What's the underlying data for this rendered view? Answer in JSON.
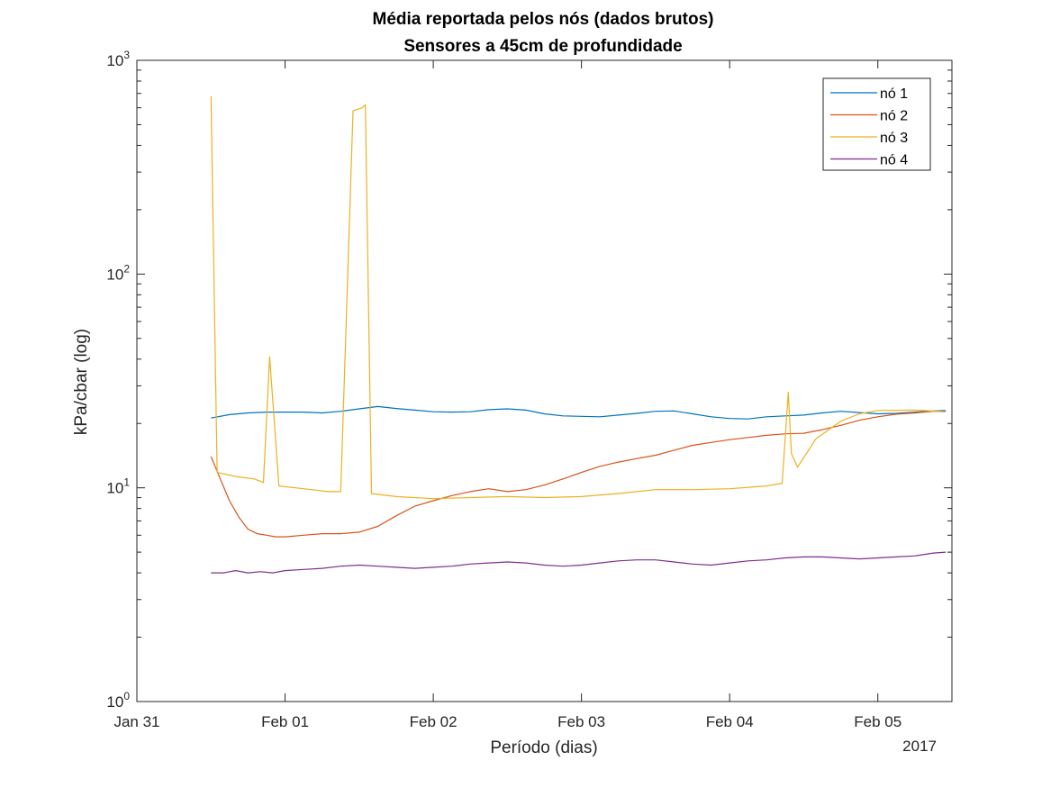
{
  "chart_data": {
    "type": "line",
    "title": "Média reportada pelos nós (dados brutos)",
    "subtitle": "Sensores a 45cm de profundidade",
    "xlabel": "Período (dias)",
    "ylabel": "kPa/cbar (log)",
    "x_year_label": "2017",
    "y_scale": "log",
    "ylim": [
      1,
      1000
    ],
    "xlim": [
      "2017-01-31T00:00",
      "2017-02-05T12:00"
    ],
    "x_ticks": [
      {
        "t": "2017-01-31T00:00",
        "label": "Jan 31"
      },
      {
        "t": "2017-02-01T00:00",
        "label": "Feb 01"
      },
      {
        "t": "2017-02-02T00:00",
        "label": "Feb 02"
      },
      {
        "t": "2017-02-03T00:00",
        "label": "Feb 03"
      },
      {
        "t": "2017-02-04T00:00",
        "label": "Feb 04"
      },
      {
        "t": "2017-02-05T00:00",
        "label": "Feb 05"
      }
    ],
    "y_ticks": [
      {
        "v": 1,
        "base": "10",
        "exp": "0"
      },
      {
        "v": 10,
        "base": "10",
        "exp": "1"
      },
      {
        "v": 100,
        "base": "10",
        "exp": "2"
      },
      {
        "v": 1000,
        "base": "10",
        "exp": "3"
      }
    ],
    "grid": false,
    "legend_position": "top-right",
    "series": [
      {
        "name": "nó 1",
        "color": "#0072BD",
        "points": [
          [
            "2017-01-31T12:00",
            21.2
          ],
          [
            "2017-01-31T15:00",
            22.0
          ],
          [
            "2017-01-31T18:00",
            22.4
          ],
          [
            "2017-01-31T21:00",
            22.6
          ],
          [
            "2017-02-01T00:00",
            22.6
          ],
          [
            "2017-02-01T03:00",
            22.6
          ],
          [
            "2017-02-01T06:00",
            22.4
          ],
          [
            "2017-02-01T09:00",
            22.8
          ],
          [
            "2017-02-01T12:00",
            23.4
          ],
          [
            "2017-02-01T15:00",
            24.0
          ],
          [
            "2017-02-01T18:00",
            23.5
          ],
          [
            "2017-02-01T21:00",
            23.1
          ],
          [
            "2017-02-02T00:00",
            22.7
          ],
          [
            "2017-02-02T03:00",
            22.6
          ],
          [
            "2017-02-02T06:00",
            22.7
          ],
          [
            "2017-02-02T09:00",
            23.2
          ],
          [
            "2017-02-02T12:00",
            23.4
          ],
          [
            "2017-02-02T15:00",
            23.1
          ],
          [
            "2017-02-02T18:00",
            22.2
          ],
          [
            "2017-02-02T21:00",
            21.7
          ],
          [
            "2017-02-03T00:00",
            21.6
          ],
          [
            "2017-02-03T03:00",
            21.5
          ],
          [
            "2017-02-03T06:00",
            21.9
          ],
          [
            "2017-02-03T09:00",
            22.3
          ],
          [
            "2017-02-03T12:00",
            22.8
          ],
          [
            "2017-02-03T15:00",
            22.9
          ],
          [
            "2017-02-03T18:00",
            22.2
          ],
          [
            "2017-02-03T21:00",
            21.5
          ],
          [
            "2017-02-04T00:00",
            21.1
          ],
          [
            "2017-02-04T03:00",
            21.0
          ],
          [
            "2017-02-04T06:00",
            21.5
          ],
          [
            "2017-02-04T09:00",
            21.7
          ],
          [
            "2017-02-04T12:00",
            21.9
          ],
          [
            "2017-02-04T15:00",
            22.4
          ],
          [
            "2017-02-04T18:00",
            22.8
          ],
          [
            "2017-02-04T21:00",
            22.5
          ],
          [
            "2017-02-05T00:00",
            22.2
          ],
          [
            "2017-02-05T03:00",
            22.3
          ],
          [
            "2017-02-05T06:00",
            22.6
          ],
          [
            "2017-02-05T09:00",
            22.9
          ],
          [
            "2017-02-05T11:00",
            23.0
          ]
        ]
      },
      {
        "name": "nó 2",
        "color": "#D95319",
        "points": [
          [
            "2017-01-31T12:00",
            14.0
          ],
          [
            "2017-01-31T13:30",
            11.0
          ],
          [
            "2017-01-31T15:00",
            8.7
          ],
          [
            "2017-01-31T16:30",
            7.3
          ],
          [
            "2017-01-31T18:00",
            6.4
          ],
          [
            "2017-01-31T19:30",
            6.1
          ],
          [
            "2017-01-31T21:00",
            6.0
          ],
          [
            "2017-01-31T22:30",
            5.9
          ],
          [
            "2017-02-01T00:00",
            5.9
          ],
          [
            "2017-02-01T03:00",
            6.0
          ],
          [
            "2017-02-01T06:00",
            6.1
          ],
          [
            "2017-02-01T09:00",
            6.1
          ],
          [
            "2017-02-01T12:00",
            6.2
          ],
          [
            "2017-02-01T15:00",
            6.6
          ],
          [
            "2017-02-01T18:00",
            7.4
          ],
          [
            "2017-02-01T21:00",
            8.2
          ],
          [
            "2017-02-02T00:00",
            8.7
          ],
          [
            "2017-02-02T03:00",
            9.2
          ],
          [
            "2017-02-02T06:00",
            9.6
          ],
          [
            "2017-02-02T09:00",
            9.9
          ],
          [
            "2017-02-02T12:00",
            9.6
          ],
          [
            "2017-02-02T15:00",
            9.8
          ],
          [
            "2017-02-02T18:00",
            10.3
          ],
          [
            "2017-02-02T21:00",
            11.0
          ],
          [
            "2017-02-03T00:00",
            11.8
          ],
          [
            "2017-02-03T03:00",
            12.6
          ],
          [
            "2017-02-03T06:00",
            13.2
          ],
          [
            "2017-02-03T09:00",
            13.7
          ],
          [
            "2017-02-03T12:00",
            14.2
          ],
          [
            "2017-02-03T15:00",
            15.0
          ],
          [
            "2017-02-03T18:00",
            15.8
          ],
          [
            "2017-02-03T21:00",
            16.3
          ],
          [
            "2017-02-04T00:00",
            16.8
          ],
          [
            "2017-02-04T03:00",
            17.2
          ],
          [
            "2017-02-04T06:00",
            17.6
          ],
          [
            "2017-02-04T09:00",
            17.9
          ],
          [
            "2017-02-04T12:00",
            18.0
          ],
          [
            "2017-02-04T15:00",
            18.7
          ],
          [
            "2017-02-04T18:00",
            19.6
          ],
          [
            "2017-02-04T21:00",
            20.7
          ],
          [
            "2017-02-05T00:00",
            21.5
          ],
          [
            "2017-02-05T03:00",
            22.1
          ],
          [
            "2017-02-05T06:00",
            22.4
          ],
          [
            "2017-02-05T09:00",
            22.8
          ],
          [
            "2017-02-05T11:00",
            22.7
          ]
        ]
      },
      {
        "name": "nó 3",
        "color": "#EDB120",
        "points": [
          [
            "2017-01-31T12:00",
            680
          ],
          [
            "2017-01-31T13:00",
            11.8
          ],
          [
            "2017-01-31T16:00",
            11.3
          ],
          [
            "2017-01-31T19:00",
            11.0
          ],
          [
            "2017-01-31T20:30",
            10.6
          ],
          [
            "2017-01-31T21:30",
            41
          ],
          [
            "2017-01-31T23:00",
            10.2
          ],
          [
            "2017-02-01T03:00",
            9.9
          ],
          [
            "2017-02-01T07:00",
            9.6
          ],
          [
            "2017-02-01T09:00",
            9.6
          ],
          [
            "2017-02-01T11:00",
            580
          ],
          [
            "2017-02-01T12:30",
            600
          ],
          [
            "2017-02-01T13:00",
            620
          ],
          [
            "2017-02-01T14:00",
            9.4
          ],
          [
            "2017-02-01T18:00",
            9.1
          ],
          [
            "2017-02-02T00:00",
            8.9
          ],
          [
            "2017-02-02T06:00",
            9.0
          ],
          [
            "2017-02-02T12:00",
            9.1
          ],
          [
            "2017-02-02T18:00",
            9.0
          ],
          [
            "2017-02-03T00:00",
            9.1
          ],
          [
            "2017-02-03T06:00",
            9.4
          ],
          [
            "2017-02-03T12:00",
            9.8
          ],
          [
            "2017-02-03T18:00",
            9.8
          ],
          [
            "2017-02-04T00:00",
            9.9
          ],
          [
            "2017-02-04T06:00",
            10.2
          ],
          [
            "2017-02-04T08:30",
            10.5
          ],
          [
            "2017-02-04T09:30",
            28
          ],
          [
            "2017-02-04T10:00",
            14.5
          ],
          [
            "2017-02-04T11:00",
            12.5
          ],
          [
            "2017-02-04T14:00",
            17.0
          ],
          [
            "2017-02-04T18:00",
            20.5
          ],
          [
            "2017-02-04T21:00",
            22.2
          ],
          [
            "2017-02-05T00:00",
            23.0
          ],
          [
            "2017-02-05T06:00",
            23.1
          ],
          [
            "2017-02-05T11:00",
            22.7
          ]
        ]
      },
      {
        "name": "nó 4",
        "color": "#7E2F8E",
        "points": [
          [
            "2017-01-31T12:00",
            4.0
          ],
          [
            "2017-01-31T14:00",
            4.0
          ],
          [
            "2017-01-31T16:00",
            4.1
          ],
          [
            "2017-01-31T18:00",
            4.0
          ],
          [
            "2017-01-31T20:00",
            4.05
          ],
          [
            "2017-01-31T22:00",
            4.0
          ],
          [
            "2017-02-01T00:00",
            4.1
          ],
          [
            "2017-02-01T03:00",
            4.15
          ],
          [
            "2017-02-01T06:00",
            4.2
          ],
          [
            "2017-02-01T09:00",
            4.3
          ],
          [
            "2017-02-01T12:00",
            4.35
          ],
          [
            "2017-02-01T15:00",
            4.3
          ],
          [
            "2017-02-01T18:00",
            4.25
          ],
          [
            "2017-02-01T21:00",
            4.2
          ],
          [
            "2017-02-02T00:00",
            4.25
          ],
          [
            "2017-02-02T03:00",
            4.3
          ],
          [
            "2017-02-02T06:00",
            4.4
          ],
          [
            "2017-02-02T09:00",
            4.45
          ],
          [
            "2017-02-02T12:00",
            4.5
          ],
          [
            "2017-02-02T15:00",
            4.45
          ],
          [
            "2017-02-02T18:00",
            4.35
          ],
          [
            "2017-02-02T21:00",
            4.3
          ],
          [
            "2017-02-03T00:00",
            4.35
          ],
          [
            "2017-02-03T03:00",
            4.45
          ],
          [
            "2017-02-03T06:00",
            4.55
          ],
          [
            "2017-02-03T09:00",
            4.6
          ],
          [
            "2017-02-03T12:00",
            4.6
          ],
          [
            "2017-02-03T15:00",
            4.5
          ],
          [
            "2017-02-03T18:00",
            4.4
          ],
          [
            "2017-02-03T21:00",
            4.35
          ],
          [
            "2017-02-04T00:00",
            4.45
          ],
          [
            "2017-02-04T03:00",
            4.55
          ],
          [
            "2017-02-04T06:00",
            4.6
          ],
          [
            "2017-02-04T09:00",
            4.7
          ],
          [
            "2017-02-04T12:00",
            4.75
          ],
          [
            "2017-02-04T15:00",
            4.75
          ],
          [
            "2017-02-04T18:00",
            4.7
          ],
          [
            "2017-02-04T21:00",
            4.65
          ],
          [
            "2017-02-05T00:00",
            4.7
          ],
          [
            "2017-02-05T03:00",
            4.75
          ],
          [
            "2017-02-05T06:00",
            4.8
          ],
          [
            "2017-02-05T09:00",
            4.95
          ],
          [
            "2017-02-05T11:00",
            5.0
          ]
        ]
      }
    ]
  }
}
